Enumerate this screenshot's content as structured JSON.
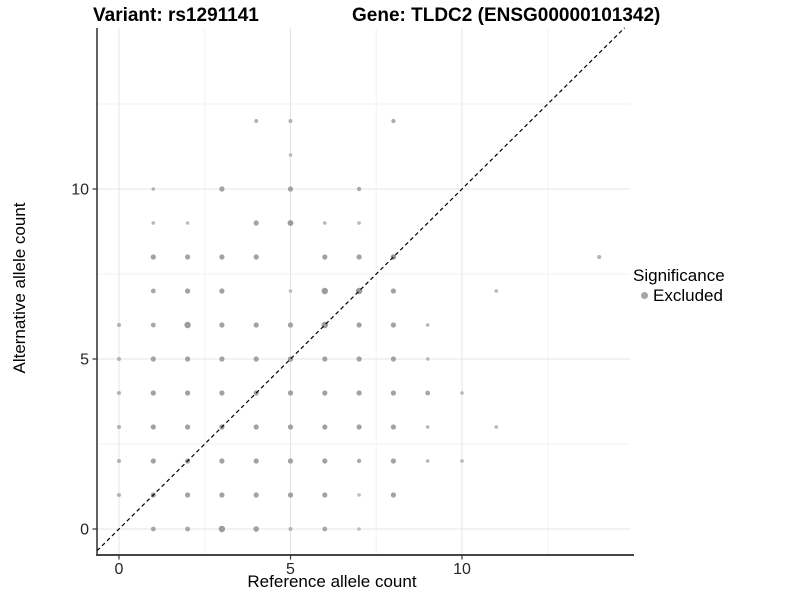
{
  "header": {
    "variant_title": "Variant: rs1291141",
    "gene_title": "Gene: TLDC2 (ENSG00000101342)"
  },
  "axes": {
    "x_label": "Reference allele count",
    "y_label": "Alternative allele count"
  },
  "legend": {
    "title": "Significance",
    "items": [
      {
        "label": "Excluded",
        "color": "#a6a6a6"
      }
    ]
  },
  "chart_data": {
    "type": "scatter",
    "title": "Variant: rs1291141   Gene: TLDC2 (ENSG00000101342)",
    "xlabel": "Reference allele count",
    "ylabel": "Alternative allele count",
    "xlim": [
      -0.7,
      14.9
    ],
    "ylim": [
      -0.8,
      14.7
    ],
    "x_ticks": [
      0,
      5,
      10
    ],
    "y_ticks": [
      0,
      5,
      10
    ],
    "minor_ticks": [
      2.5,
      7.5,
      12.5
    ],
    "grid": true,
    "legend": {
      "title": "Significance",
      "position": "right",
      "entries": [
        "Excluded"
      ]
    },
    "identity_line": {
      "type": "y=x",
      "style": "dashed",
      "color": "#000000"
    },
    "colors": {
      "grid_major": "#e4e4e4",
      "grid_minor": "#f2f2f2",
      "axis": "#333333",
      "point_base": "#a2a2a2"
    },
    "series": [
      {
        "name": "Excluded",
        "point_format": "[x, y, radius_px, fill]",
        "points": [
          [
            4,
            12,
            2.0,
            "#b2b2b2"
          ],
          [
            5,
            12,
            2.0,
            "#b2b2b2"
          ],
          [
            8,
            12,
            2.1,
            "#acacac"
          ],
          [
            5,
            11,
            1.8,
            "#b6b6b6"
          ],
          [
            1,
            10,
            1.8,
            "#b2b2b2"
          ],
          [
            3,
            10,
            2.6,
            "#a2a2a2"
          ],
          [
            5,
            10,
            2.6,
            "#a2a2a2"
          ],
          [
            7,
            10,
            2.2,
            "#ababab"
          ],
          [
            1,
            9,
            1.8,
            "#b6b6b6"
          ],
          [
            2,
            9,
            1.8,
            "#bcbcbc"
          ],
          [
            4,
            9,
            2.6,
            "#a2a2a2"
          ],
          [
            5,
            9,
            2.9,
            "#9a9a9a"
          ],
          [
            6,
            9,
            1.8,
            "#b6b6b6"
          ],
          [
            7,
            9,
            1.8,
            "#b6b6b6"
          ],
          [
            1,
            8,
            2.6,
            "#a2a2a2"
          ],
          [
            2,
            8,
            2.6,
            "#a5a5a5"
          ],
          [
            3,
            8,
            2.6,
            "#a2a2a2"
          ],
          [
            4,
            8,
            2.6,
            "#a2a2a2"
          ],
          [
            6,
            8,
            2.6,
            "#a2a2a2"
          ],
          [
            7,
            8,
            2.6,
            "#a2a2a2"
          ],
          [
            8,
            8,
            2.6,
            "#8e8e8e"
          ],
          [
            14,
            8,
            2.0,
            "#b2b2b2"
          ],
          [
            1,
            7,
            2.4,
            "#a7a7a7"
          ],
          [
            2,
            7,
            2.6,
            "#a2a2a2"
          ],
          [
            3,
            7,
            2.6,
            "#a2a2a2"
          ],
          [
            5,
            7,
            1.8,
            "#bcbcbc"
          ],
          [
            6,
            7,
            3.2,
            "#9c9c9c"
          ],
          [
            7,
            7,
            3.2,
            "#9c9c9c"
          ],
          [
            8,
            7,
            2.6,
            "#a2a2a2"
          ],
          [
            11,
            7,
            1.8,
            "#b6b6b6"
          ],
          [
            0,
            6,
            2.0,
            "#b2b2b2"
          ],
          [
            1,
            6,
            2.4,
            "#a7a7a7"
          ],
          [
            2,
            6,
            3.2,
            "#9c9c9c"
          ],
          [
            3,
            6,
            2.6,
            "#a2a2a2"
          ],
          [
            4,
            6,
            2.6,
            "#a2a2a2"
          ],
          [
            5,
            6,
            2.6,
            "#a2a2a2"
          ],
          [
            6,
            6,
            3.2,
            "#9c9c9c"
          ],
          [
            7,
            6,
            2.6,
            "#a2a2a2"
          ],
          [
            8,
            6,
            2.6,
            "#a2a2a2"
          ],
          [
            9,
            6,
            1.8,
            "#b6b6b6"
          ],
          [
            0,
            5,
            2.0,
            "#b2b2b2"
          ],
          [
            1,
            5,
            2.6,
            "#a2a2a2"
          ],
          [
            2,
            5,
            2.6,
            "#a2a2a2"
          ],
          [
            3,
            5,
            2.6,
            "#a2a2a2"
          ],
          [
            4,
            5,
            2.6,
            "#a2a2a2"
          ],
          [
            5,
            5,
            2.6,
            "#9a9a9a"
          ],
          [
            6,
            5,
            2.6,
            "#a2a2a2"
          ],
          [
            7,
            5,
            2.6,
            "#a2a2a2"
          ],
          [
            8,
            5,
            2.6,
            "#a2a2a2"
          ],
          [
            9,
            5,
            1.8,
            "#b6b6b6"
          ],
          [
            0,
            4,
            2.0,
            "#b2b2b2"
          ],
          [
            1,
            4,
            2.6,
            "#a2a2a2"
          ],
          [
            2,
            4,
            2.6,
            "#a2a2a2"
          ],
          [
            3,
            4,
            2.6,
            "#a2a2a2"
          ],
          [
            4,
            4,
            2.6,
            "#a2a2a2"
          ],
          [
            5,
            4,
            2.6,
            "#a2a2a2"
          ],
          [
            6,
            4,
            2.6,
            "#a2a2a2"
          ],
          [
            7,
            4,
            2.6,
            "#a2a2a2"
          ],
          [
            8,
            4,
            2.6,
            "#a2a2a2"
          ],
          [
            9,
            4,
            2.4,
            "#a7a7a7"
          ],
          [
            10,
            4,
            1.8,
            "#b6b6b6"
          ],
          [
            0,
            3,
            2.0,
            "#b2b2b2"
          ],
          [
            1,
            3,
            2.6,
            "#a2a2a2"
          ],
          [
            2,
            3,
            2.6,
            "#a2a2a2"
          ],
          [
            3,
            3,
            2.6,
            "#9a9a9a"
          ],
          [
            4,
            3,
            2.6,
            "#a2a2a2"
          ],
          [
            5,
            3,
            2.6,
            "#a2a2a2"
          ],
          [
            6,
            3,
            2.6,
            "#a2a2a2"
          ],
          [
            7,
            3,
            2.6,
            "#a2a2a2"
          ],
          [
            8,
            3,
            2.6,
            "#a2a2a2"
          ],
          [
            9,
            3,
            1.8,
            "#b6b6b6"
          ],
          [
            11,
            3,
            1.8,
            "#b6b6b6"
          ],
          [
            0,
            2,
            2.0,
            "#b2b2b2"
          ],
          [
            1,
            2,
            2.6,
            "#a2a2a2"
          ],
          [
            2,
            2,
            2.6,
            "#a2a2a2"
          ],
          [
            3,
            2,
            2.6,
            "#a2a2a2"
          ],
          [
            4,
            2,
            2.6,
            "#a2a2a2"
          ],
          [
            5,
            2,
            2.6,
            "#a2a2a2"
          ],
          [
            6,
            2,
            2.6,
            "#a2a2a2"
          ],
          [
            7,
            2,
            2.2,
            "#ababab"
          ],
          [
            8,
            2,
            2.6,
            "#a2a2a2"
          ],
          [
            9,
            2,
            1.8,
            "#b6b6b6"
          ],
          [
            10,
            2,
            1.8,
            "#b6b6b6"
          ],
          [
            0,
            1,
            2.0,
            "#b2b2b2"
          ],
          [
            1,
            1,
            2.6,
            "#a2a2a2"
          ],
          [
            2,
            1,
            2.6,
            "#a2a2a2"
          ],
          [
            3,
            1,
            2.6,
            "#a2a2a2"
          ],
          [
            4,
            1,
            2.6,
            "#a2a2a2"
          ],
          [
            5,
            1,
            2.6,
            "#a2a2a2"
          ],
          [
            6,
            1,
            2.6,
            "#a2a2a2"
          ],
          [
            7,
            1,
            1.8,
            "#bcbcbc"
          ],
          [
            8,
            1,
            2.6,
            "#a2a2a2"
          ],
          [
            1,
            0,
            2.4,
            "#a7a7a7"
          ],
          [
            2,
            0,
            2.4,
            "#a7a7a7"
          ],
          [
            3,
            0,
            3.2,
            "#9c9c9c"
          ],
          [
            4,
            0,
            2.8,
            "#a0a0a0"
          ],
          [
            5,
            0,
            2.0,
            "#b2b2b2"
          ],
          [
            6,
            0,
            2.4,
            "#a7a7a7"
          ],
          [
            7,
            0,
            1.8,
            "#bcbcbc"
          ]
        ]
      }
    ]
  }
}
